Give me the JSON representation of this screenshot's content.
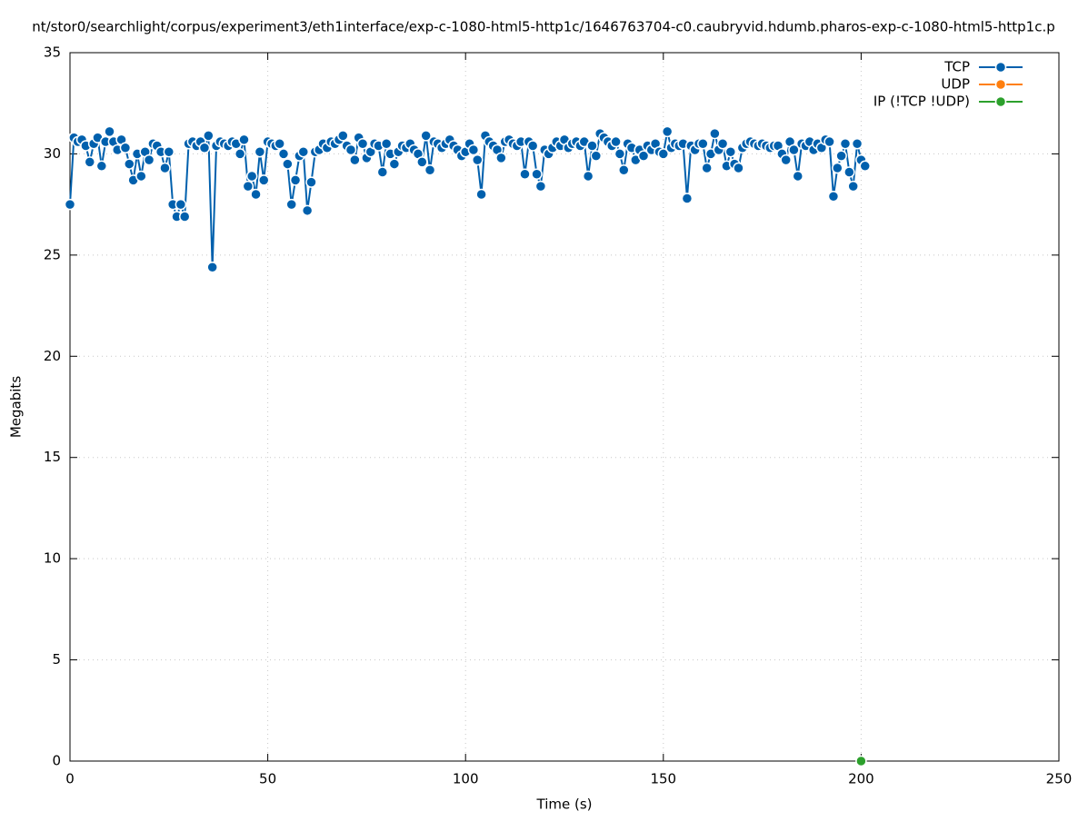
{
  "chart_data": {
    "type": "line",
    "title": "nt/stor0/searchlight/corpus/experiment3/eth1interface/exp-c-1080-html5-http1c/1646763704-c0.caubryvid.hdumb.pharos-exp-c-1080-html5-http1c.p",
    "x_label": "Time (s)",
    "y_label": "Megabits",
    "xlim": [
      0,
      250
    ],
    "ylim": [
      0,
      35
    ],
    "xticks": [
      0,
      50,
      100,
      150,
      200,
      250
    ],
    "yticks": [
      0,
      5,
      10,
      15,
      20,
      25,
      30,
      35
    ],
    "grid": true,
    "legend": "top-right",
    "series": [
      {
        "name": "TCP",
        "color": "#0060ad",
        "x": [
          0,
          1,
          2,
          3,
          4,
          5,
          6,
          7,
          8,
          9,
          10,
          11,
          12,
          13,
          14,
          15,
          16,
          17,
          18,
          19,
          20,
          21,
          22,
          23,
          24,
          25,
          26,
          27,
          28,
          29,
          30,
          31,
          32,
          33,
          34,
          35,
          36,
          37,
          38,
          39,
          40,
          41,
          42,
          43,
          44,
          45,
          46,
          47,
          48,
          49,
          50,
          51,
          52,
          53,
          54,
          55,
          56,
          57,
          58,
          59,
          60,
          61,
          62,
          63,
          64,
          65,
          66,
          67,
          68,
          69,
          70,
          71,
          72,
          73,
          74,
          75,
          76,
          77,
          78,
          79,
          80,
          81,
          82,
          83,
          84,
          85,
          86,
          87,
          88,
          89,
          90,
          91,
          92,
          93,
          94,
          95,
          96,
          97,
          98,
          99,
          100,
          101,
          102,
          103,
          104,
          105,
          106,
          107,
          108,
          109,
          110,
          111,
          112,
          113,
          114,
          115,
          116,
          117,
          118,
          119,
          120,
          121,
          122,
          123,
          124,
          125,
          126,
          127,
          128,
          129,
          130,
          131,
          132,
          133,
          134,
          135,
          136,
          137,
          138,
          139,
          140,
          141,
          142,
          143,
          144,
          145,
          146,
          147,
          148,
          149,
          150,
          151,
          152,
          153,
          154,
          155,
          156,
          157,
          158,
          159,
          160,
          161,
          162,
          163,
          164,
          165,
          166,
          167,
          168,
          169,
          170,
          171,
          172,
          173,
          174,
          175,
          176,
          177,
          178,
          179,
          180,
          181,
          182,
          183,
          184,
          185,
          186,
          187,
          188,
          189,
          190,
          191,
          192,
          193,
          194,
          195,
          196,
          197,
          198,
          199,
          200,
          201
        ],
        "values": [
          27.5,
          30.8,
          30.6,
          30.7,
          30.4,
          29.6,
          30.5,
          30.8,
          29.4,
          30.6,
          31.1,
          30.6,
          30.2,
          30.7,
          30.3,
          29.5,
          28.7,
          30.0,
          28.9,
          30.1,
          29.7,
          30.5,
          30.4,
          30.1,
          29.3,
          30.1,
          27.5,
          26.9,
          27.5,
          26.9,
          30.5,
          30.6,
          30.4,
          30.6,
          30.3,
          30.9,
          24.4,
          30.4,
          30.6,
          30.5,
          30.4,
          30.6,
          30.5,
          30.0,
          30.7,
          28.4,
          28.9,
          28.0,
          30.1,
          28.7,
          30.6,
          30.5,
          30.4,
          30.5,
          30.0,
          29.5,
          27.5,
          28.7,
          29.9,
          30.1,
          27.2,
          28.6,
          30.1,
          30.2,
          30.5,
          30.3,
          30.6,
          30.5,
          30.7,
          30.9,
          30.4,
          30.2,
          29.7,
          30.8,
          30.5,
          29.8,
          30.1,
          30.5,
          30.4,
          29.1,
          30.5,
          30.0,
          29.5,
          30.1,
          30.4,
          30.3,
          30.5,
          30.2,
          30.0,
          29.6,
          30.9,
          29.2,
          30.6,
          30.5,
          30.3,
          30.5,
          30.7,
          30.4,
          30.2,
          29.9,
          30.1,
          30.5,
          30.2,
          29.7,
          28.0,
          30.9,
          30.6,
          30.4,
          30.2,
          29.8,
          30.6,
          30.7,
          30.5,
          30.4,
          30.6,
          29.0,
          30.6,
          30.4,
          29.0,
          28.4,
          30.2,
          30.0,
          30.3,
          30.6,
          30.4,
          30.7,
          30.3,
          30.5,
          30.6,
          30.4,
          30.6,
          28.9,
          30.4,
          29.9,
          31.0,
          30.8,
          30.6,
          30.4,
          30.6,
          30.0,
          29.2,
          30.5,
          30.3,
          29.7,
          30.2,
          29.9,
          30.4,
          30.2,
          30.5,
          30.1,
          30.0,
          31.1,
          30.3,
          30.5,
          30.4,
          30.5,
          27.8,
          30.4,
          30.2,
          30.5,
          30.5,
          29.3,
          30.0,
          31.0,
          30.2,
          30.5,
          29.4,
          30.1,
          29.5,
          29.3,
          30.3,
          30.5,
          30.6,
          30.5,
          30.4,
          30.5,
          30.4,
          30.3,
          30.4,
          30.4,
          30.0,
          29.7,
          30.6,
          30.2,
          28.9,
          30.5,
          30.4,
          30.6,
          30.2,
          30.5,
          30.3,
          30.7,
          30.6,
          27.9,
          29.3,
          29.9,
          30.5,
          29.1,
          28.4,
          30.5,
          29.7,
          29.4
        ]
      },
      {
        "name": "UDP",
        "color": "#ff7f0e",
        "x": [],
        "values": []
      },
      {
        "name": "IP (!TCP  !UDP)",
        "color": "#2ca02c",
        "x": [
          200
        ],
        "values": [
          0
        ]
      }
    ]
  }
}
